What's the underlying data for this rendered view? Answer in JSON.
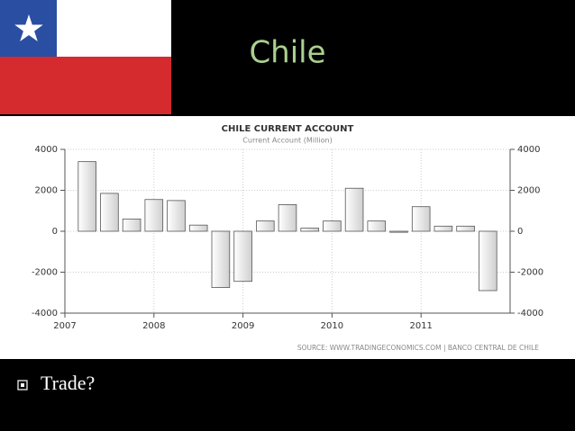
{
  "slide": {
    "title": "Chile",
    "bullets": [
      "Trade?"
    ]
  },
  "chart_data": {
    "type": "bar",
    "title": "CHILE CURRENT ACCOUNT",
    "subtitle": "Current Account (Million)",
    "source": "SOURCE: WWW.TRADINGECONOMICS.COM | BANCO CENTRAL DE CHILE",
    "x": [
      2007.25,
      2007.5,
      2007.75,
      2008,
      2008.25,
      2008.5,
      2008.75,
      2009,
      2009.25,
      2009.5,
      2009.75,
      2010,
      2010.25,
      2010.5,
      2010.75,
      2011,
      2011.25,
      2011.5,
      2011.75
    ],
    "values": [
      3400,
      1850,
      600,
      1550,
      1500,
      300,
      -2750,
      -2450,
      500,
      1300,
      150,
      500,
      2100,
      500,
      -50,
      1200,
      250,
      250,
      -2900
    ],
    "xlim": [
      2007,
      2012
    ],
    "xticks": [
      2007,
      2008,
      2009,
      2010,
      2011
    ],
    "ylim": [
      -4000,
      4000
    ],
    "yticks": [
      4000,
      2000,
      0,
      -2000,
      -4000
    ],
    "y2lim": [
      -4000,
      4000
    ],
    "y2ticks": [
      4000,
      2000,
      0,
      -2000,
      -4000
    ],
    "color": "#d9d9d9",
    "grid": true
  }
}
